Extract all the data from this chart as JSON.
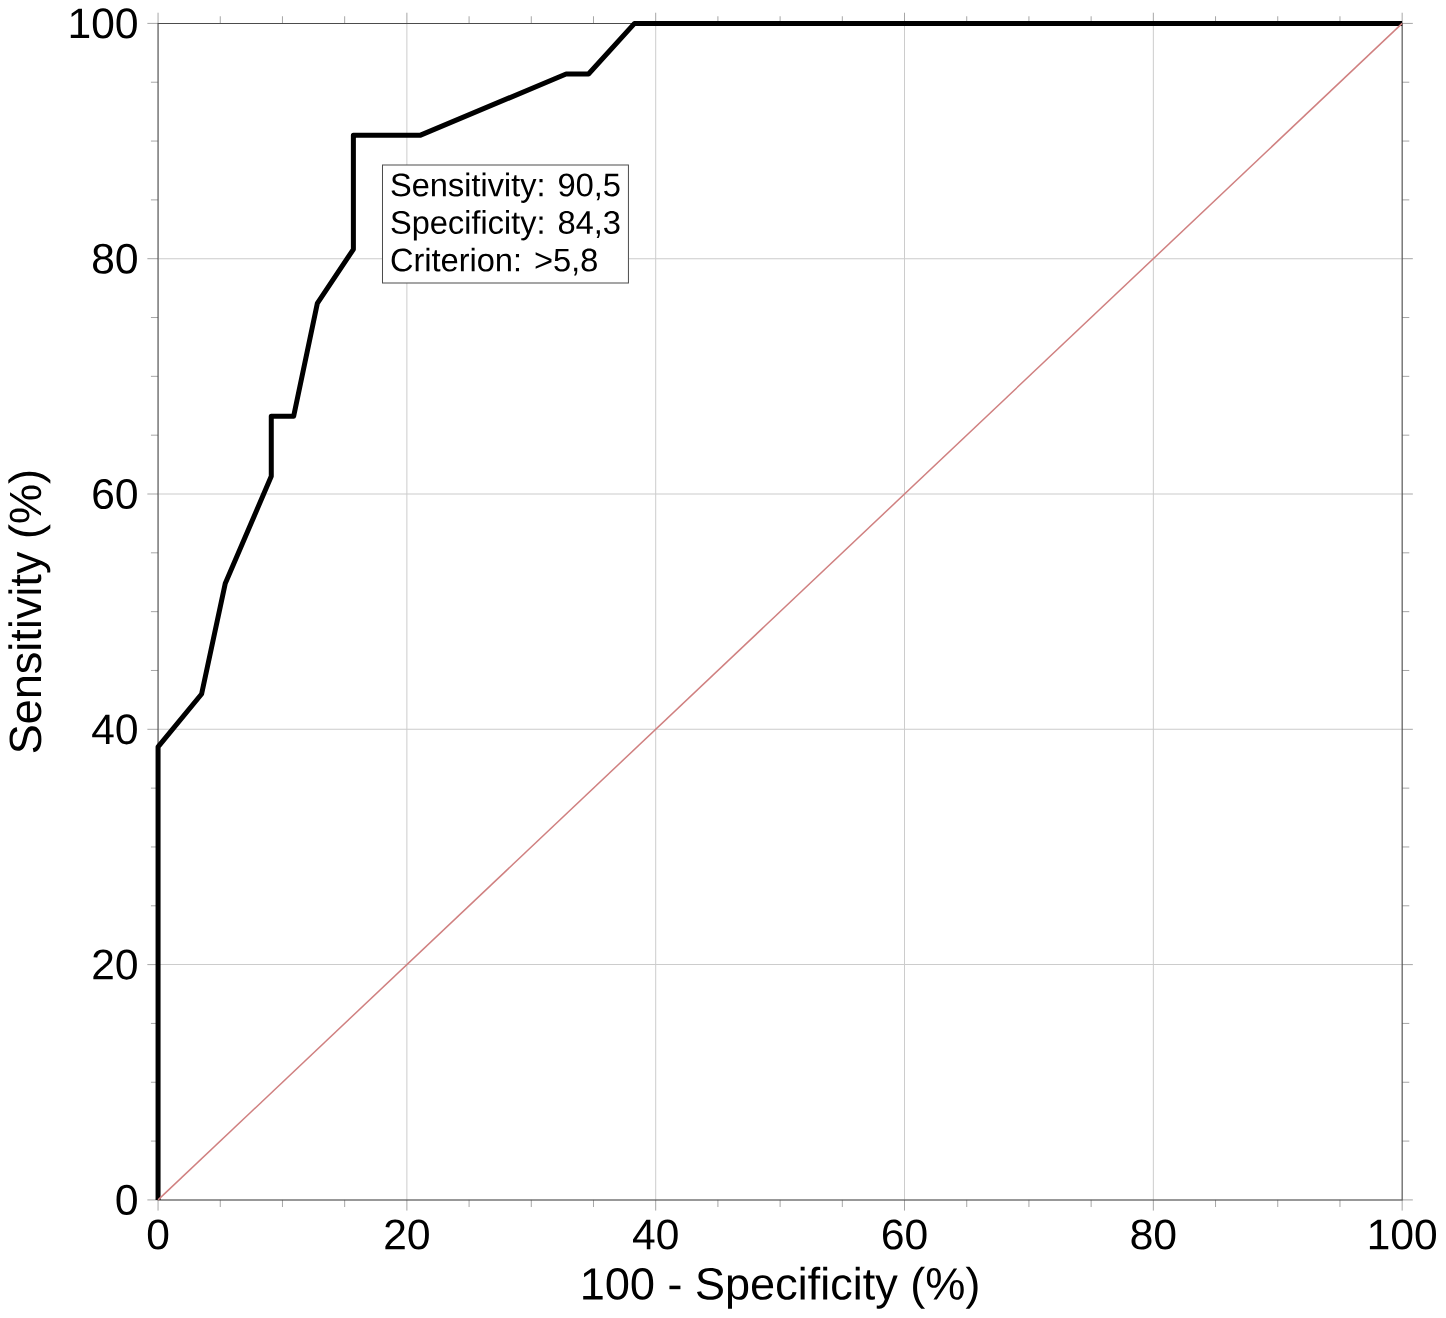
{
  "chart_data": {
    "type": "line",
    "xlabel": "100 - Specificity (%)",
    "ylabel": "Sensitivity (%)",
    "xlim": [
      0,
      100
    ],
    "ylim": [
      0,
      100
    ],
    "xticks": [
      0,
      20,
      40,
      60,
      80,
      100
    ],
    "yticks": [
      0,
      20,
      40,
      60,
      80,
      100
    ],
    "grid": true,
    "series": [
      {
        "color": "#000000",
        "x": [
          0,
          0,
          3.5,
          5.4,
          9.1,
          9.1,
          10.9,
          12.8,
          15.7,
          15.7,
          21.1,
          32.8,
          34.6,
          38.3,
          100
        ],
        "values": [
          0,
          38.5,
          43,
          52.4,
          61.5,
          66.6,
          66.6,
          76.2,
          80.8,
          90.5,
          90.5,
          95.7,
          95.7,
          100,
          100
        ]
      },
      {
        "color": "#d08080",
        "x": [
          0,
          100
        ],
        "values": [
          0,
          100
        ]
      }
    ],
    "annotations": [
      "Sensitivity: 90,5",
      "Specificity: 84,3",
      "Criterion: >5,8"
    ]
  }
}
